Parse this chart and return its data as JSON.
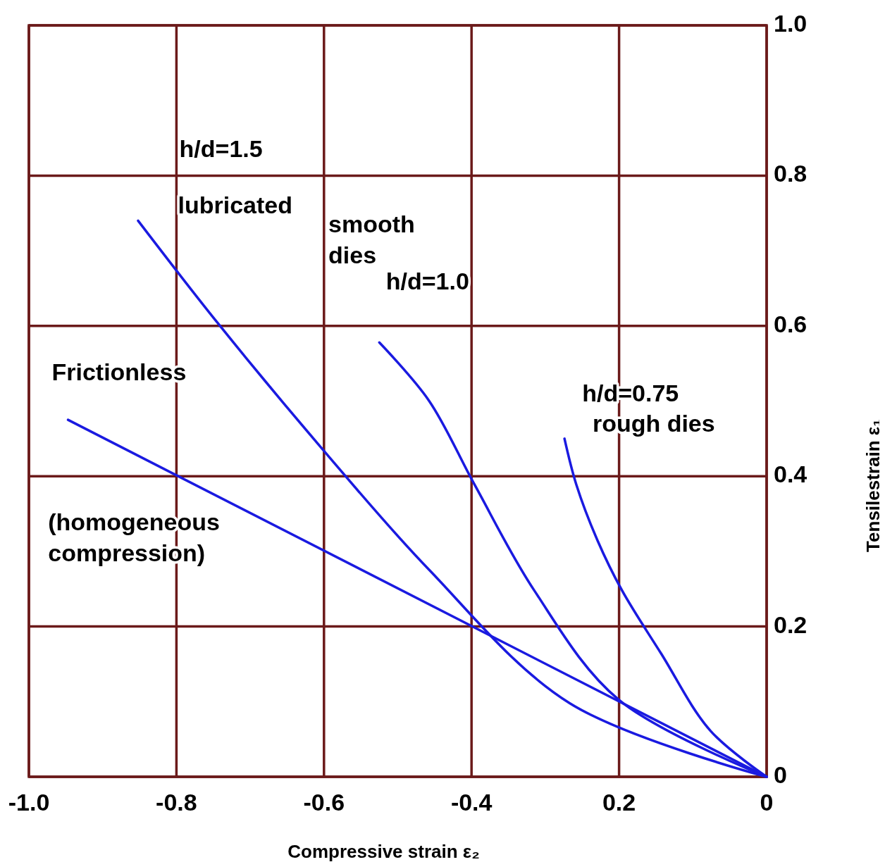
{
  "chart_data": {
    "type": "line",
    "xlabel": "Compressive strain ε₂",
    "ylabel": "Tensilestrain ε₁",
    "xlim": [
      -1.0,
      0
    ],
    "ylim": [
      0,
      1.0
    ],
    "xticks": [
      {
        "value": -1.0,
        "label": "-1.0"
      },
      {
        "value": -0.8,
        "label": "-0.8"
      },
      {
        "value": -0.6,
        "label": "-0.6"
      },
      {
        "value": -0.4,
        "label": "-0.4"
      },
      {
        "value": -0.2,
        "label": "0.2"
      },
      0
    ],
    "yticks": [
      0,
      0.2,
      0.4,
      0.6,
      0.8,
      {
        "value": 1.0,
        "label": "1.0"
      }
    ],
    "grid": true,
    "marker": "none",
    "line_style": "solid",
    "series": [
      {
        "color": "#1a1ae0",
        "x": [
          -0.947,
          0
        ],
        "values": [
          0.475,
          0
        ]
      },
      {
        "color": "#1a1ae0",
        "x": [
          -0.852,
          -0.745,
          -0.602,
          -0.458,
          -0.267,
          0
        ],
        "values": [
          0.74,
          0.605,
          0.436,
          0.276,
          0.098,
          0
        ]
      },
      {
        "color": "#1a1ae0",
        "x": [
          -0.525,
          -0.458,
          -0.396,
          -0.315,
          -0.201,
          0
        ],
        "values": [
          0.578,
          0.501,
          0.389,
          0.248,
          0.103,
          0
        ]
      },
      {
        "color": "#1a1ae0",
        "x": [
          -0.274,
          -0.258,
          -0.229,
          -0.196,
          -0.143,
          -0.076,
          0
        ],
        "values": [
          0.45,
          0.389,
          0.314,
          0.248,
          0.164,
          0.061,
          0
        ]
      }
    ],
    "annotations": [
      "h/d=1.5",
      "lubricated",
      "smooth\ndies",
      "h/d=1.0",
      "Frictionless",
      "(homogeneous\ncompression)",
      "h/d=0.75",
      "rough dies"
    ]
  }
}
